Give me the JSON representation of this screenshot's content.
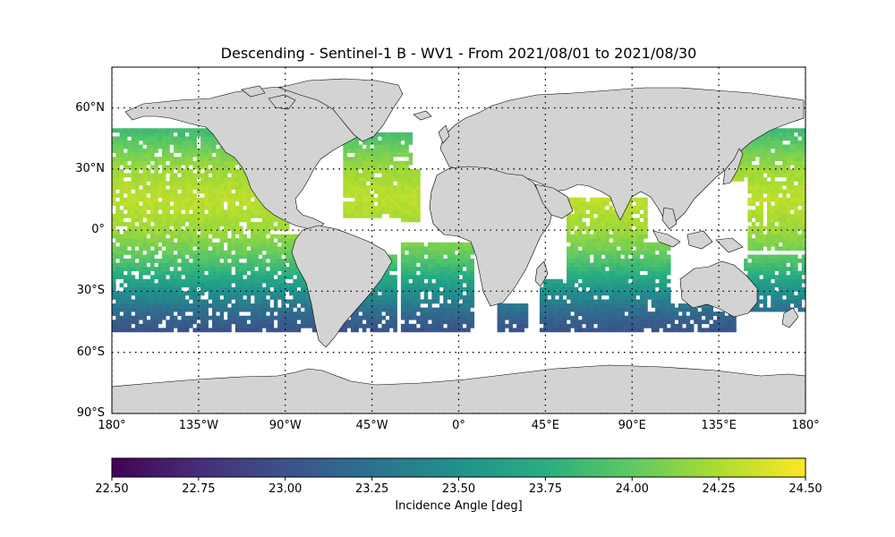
{
  "title": "Descending - Sentinel-1 B - WV1 - From 2021/08/01 to 2021/08/30",
  "map": {
    "projection": "PlateCarree",
    "lon_range": [
      -180,
      180
    ],
    "lat_range": [
      -90,
      80
    ],
    "land_color": "#d3d3d3",
    "coastline_color": "#000000",
    "gridlines": "dotted",
    "lon_ticks": [
      {
        "value": -180,
        "label": "180°"
      },
      {
        "value": -135,
        "label": "135°W"
      },
      {
        "value": -90,
        "label": "90°W"
      },
      {
        "value": -45,
        "label": "45°W"
      },
      {
        "value": 0,
        "label": "0°"
      },
      {
        "value": 45,
        "label": "45°E"
      },
      {
        "value": 90,
        "label": "90°E"
      },
      {
        "value": 135,
        "label": "135°E"
      },
      {
        "value": 180,
        "label": "180°"
      }
    ],
    "lat_ticks": [
      {
        "value": 60,
        "label": "60°N"
      },
      {
        "value": 30,
        "label": "30°N"
      },
      {
        "value": 0,
        "label": "0°"
      },
      {
        "value": -30,
        "label": "30°S"
      },
      {
        "value": -60,
        "label": "60°S"
      },
      {
        "value": -90,
        "label": "90°S"
      }
    ]
  },
  "chart_data": {
    "type": "heatmap",
    "title": "Descending - Sentinel-1 B - WV1 - From 2021/08/01 to 2021/08/30",
    "colormap": "viridis",
    "value_range": [
      22.5,
      24.5
    ],
    "colorbar_label": "Incidence Angle [deg]",
    "colorbar_ticks": [
      {
        "value": 22.5,
        "label": "22.50"
      },
      {
        "value": 22.75,
        "label": "22.75"
      },
      {
        "value": 23.0,
        "label": "23.00"
      },
      {
        "value": 23.25,
        "label": "23.25"
      },
      {
        "value": 23.5,
        "label": "23.50"
      },
      {
        "value": 23.75,
        "label": "23.75"
      },
      {
        "value": 24.0,
        "label": "24.00"
      },
      {
        "value": 24.25,
        "label": "24.25"
      },
      {
        "value": 24.5,
        "label": "24.50"
      }
    ],
    "data_lat_range": [
      -50,
      50
    ],
    "cell_size_deg": 2,
    "value_by_latitude": [
      {
        "lat": 50,
        "value": 23.85
      },
      {
        "lat": 40,
        "value": 24.05
      },
      {
        "lat": 30,
        "value": 24.2
      },
      {
        "lat": 15,
        "value": 24.3
      },
      {
        "lat": 0,
        "value": 24.2
      },
      {
        "lat": -10,
        "value": 24.05
      },
      {
        "lat": -20,
        "value": 23.8
      },
      {
        "lat": -30,
        "value": 23.5
      },
      {
        "lat": -40,
        "value": 23.2
      },
      {
        "lat": -50,
        "value": 23.0
      }
    ]
  }
}
